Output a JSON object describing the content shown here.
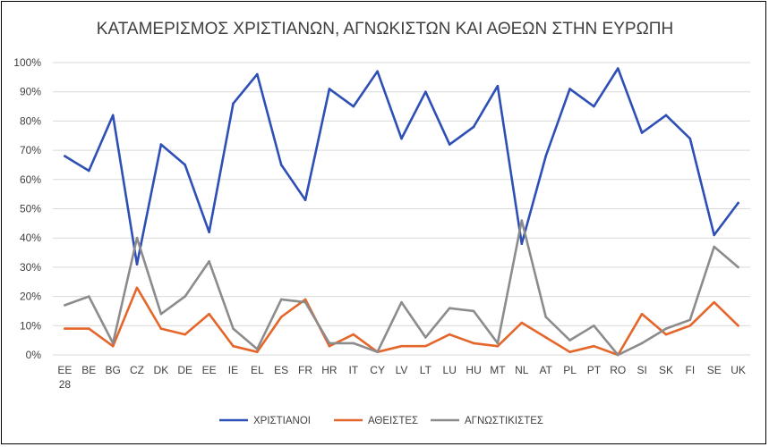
{
  "chart_data": {
    "type": "line",
    "title": "ΚΑΤΑΜΕΡΙΣΜΟΣ ΧΡΙΣΤΙΑΝΩΝ, ΑΓΝΩΚΙΣΤΩΝ ΚΑΙ ΑΘΕΩΝ ΣΤΗΝ ΕΥΡΩΠΗ",
    "xlabel": "",
    "ylabel": "",
    "ylim": [
      0,
      100
    ],
    "y_ticks": [
      "0%",
      "10%",
      "20%",
      "30%",
      "40%",
      "50%",
      "60%",
      "70%",
      "80%",
      "90%",
      "100%"
    ],
    "grid": "horizontal",
    "legend_position": "bottom",
    "categories": [
      "EE 28",
      "BE",
      "BG",
      "CZ",
      "DK",
      "DE",
      "EE",
      "IE",
      "EL",
      "ES",
      "FR",
      "HR",
      "IT",
      "CY",
      "LV",
      "LT",
      "LU",
      "HU",
      "MT",
      "NL",
      "AT",
      "PL",
      "PT",
      "RO",
      "SI",
      "SK",
      "FI",
      "SE",
      "UK"
    ],
    "series": [
      {
        "name": "ΧΡΙΣΤΙΑΝΟΙ",
        "color": "#2e4fb5",
        "values": [
          68,
          63,
          82,
          31,
          72,
          65,
          42,
          86,
          96,
          65,
          53,
          91,
          85,
          97,
          74,
          90,
          72,
          78,
          92,
          38,
          68,
          91,
          85,
          98,
          76,
          82,
          74,
          41,
          52
        ]
      },
      {
        "name": "ΑΘΕΙΣΤΕΣ",
        "color": "#e5662a",
        "values": [
          9,
          9,
          3,
          23,
          9,
          7,
          14,
          3,
          1,
          13,
          19,
          3,
          7,
          1,
          3,
          3,
          7,
          4,
          3,
          11,
          6,
          1,
          3,
          0,
          14,
          7,
          10,
          18,
          10
        ]
      },
      {
        "name": "ΑΓΝΩΣΤΙΚΙΣΤΕΣ",
        "color": "#8c8c8c",
        "values": [
          17,
          20,
          4,
          40,
          14,
          20,
          32,
          9,
          2,
          19,
          18,
          4,
          4,
          1,
          18,
          6,
          16,
          15,
          4,
          46,
          13,
          5,
          10,
          0,
          4,
          9,
          12,
          37,
          30
        ]
      }
    ]
  }
}
